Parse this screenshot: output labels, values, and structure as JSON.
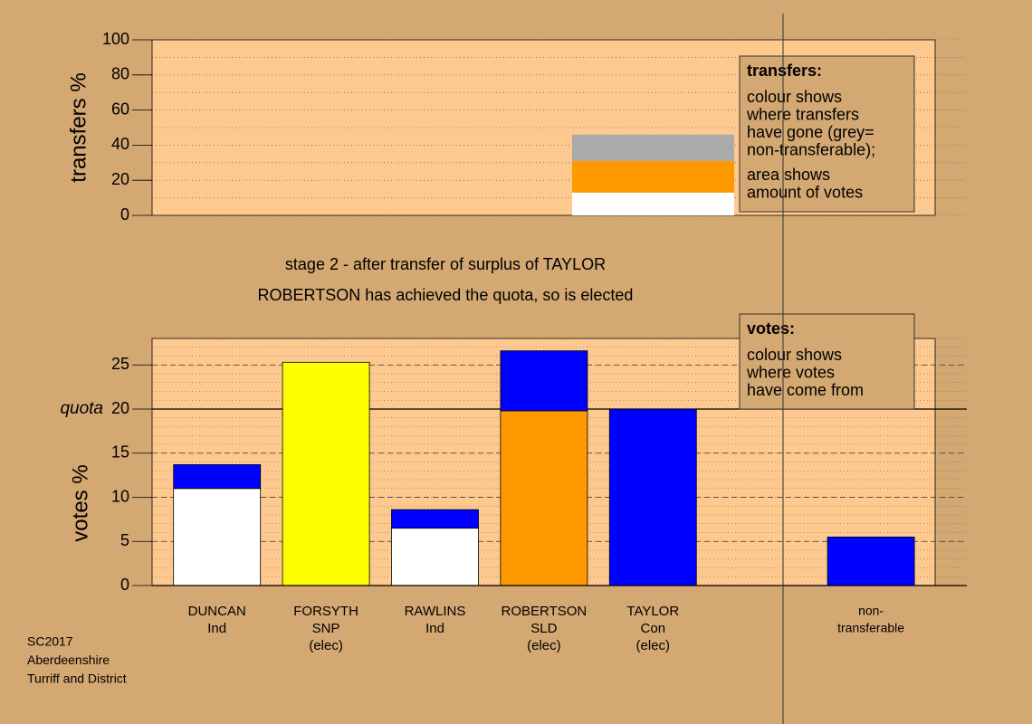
{
  "chart_data": [
    {
      "type": "bar",
      "stacked": true,
      "ylabel": "transfers %",
      "categories": [
        null
      ],
      "series": [
        {
          "color": "#ffffff",
          "values": [
            13
          ]
        },
        {
          "color": "#ff9900",
          "values": [
            18
          ]
        },
        {
          "color": "#aaaaaa",
          "values": [
            15
          ]
        }
      ],
      "ylim": [
        0,
        100
      ],
      "yticks": [
        0,
        20,
        40,
        60,
        80,
        100
      ],
      "grid": true,
      "note": {
        "heading": "transfers:",
        "paragraphs": [
          [
            "colour shows",
            "where transfers",
            "have gone (grey=",
            "non-transferable);"
          ],
          [
            "area shows",
            "amount of votes"
          ]
        ]
      }
    },
    {
      "type": "bar",
      "stacked": true,
      "ylabel": "votes %",
      "title": "stage 2 - after transfer of surplus of TAYLOR",
      "subtitle": "ROBERTSON has achieved the quota, so is elected",
      "categories": [
        [
          "DUNCAN",
          "Ind"
        ],
        [
          "FORSYTH",
          "SNP",
          "(elec)"
        ],
        [
          "RAWLINS",
          "Ind"
        ],
        [
          "ROBERTSON",
          "SLD",
          "(elec)"
        ],
        [
          "TAYLOR",
          "Con",
          "(elec)"
        ],
        null,
        [
          "non-",
          "transferable"
        ]
      ],
      "series": [
        {
          "colors": [
            "#ffffff",
            "#ffff00",
            "#ffffff",
            "#ff9900",
            "#0000ff",
            null,
            "#0000ff"
          ],
          "values": [
            11,
            25.3,
            6.5,
            19.8,
            20,
            null,
            5.5
          ]
        },
        {
          "color": "#0000ff",
          "values": [
            2.7,
            null,
            2.1,
            6.8,
            null,
            null,
            null
          ]
        }
      ],
      "ylim": [
        0,
        28
      ],
      "yticks": [
        0,
        5,
        10,
        15,
        20,
        25
      ],
      "grid": true,
      "quota": {
        "label": "quota",
        "value": 20
      },
      "note": {
        "heading": "votes:",
        "paragraphs": [
          [
            "colour shows",
            "where votes",
            "have come from"
          ]
        ]
      }
    }
  ],
  "footer": [
    "SC2017",
    "Aberdeenshire",
    "Turriff and District"
  ]
}
